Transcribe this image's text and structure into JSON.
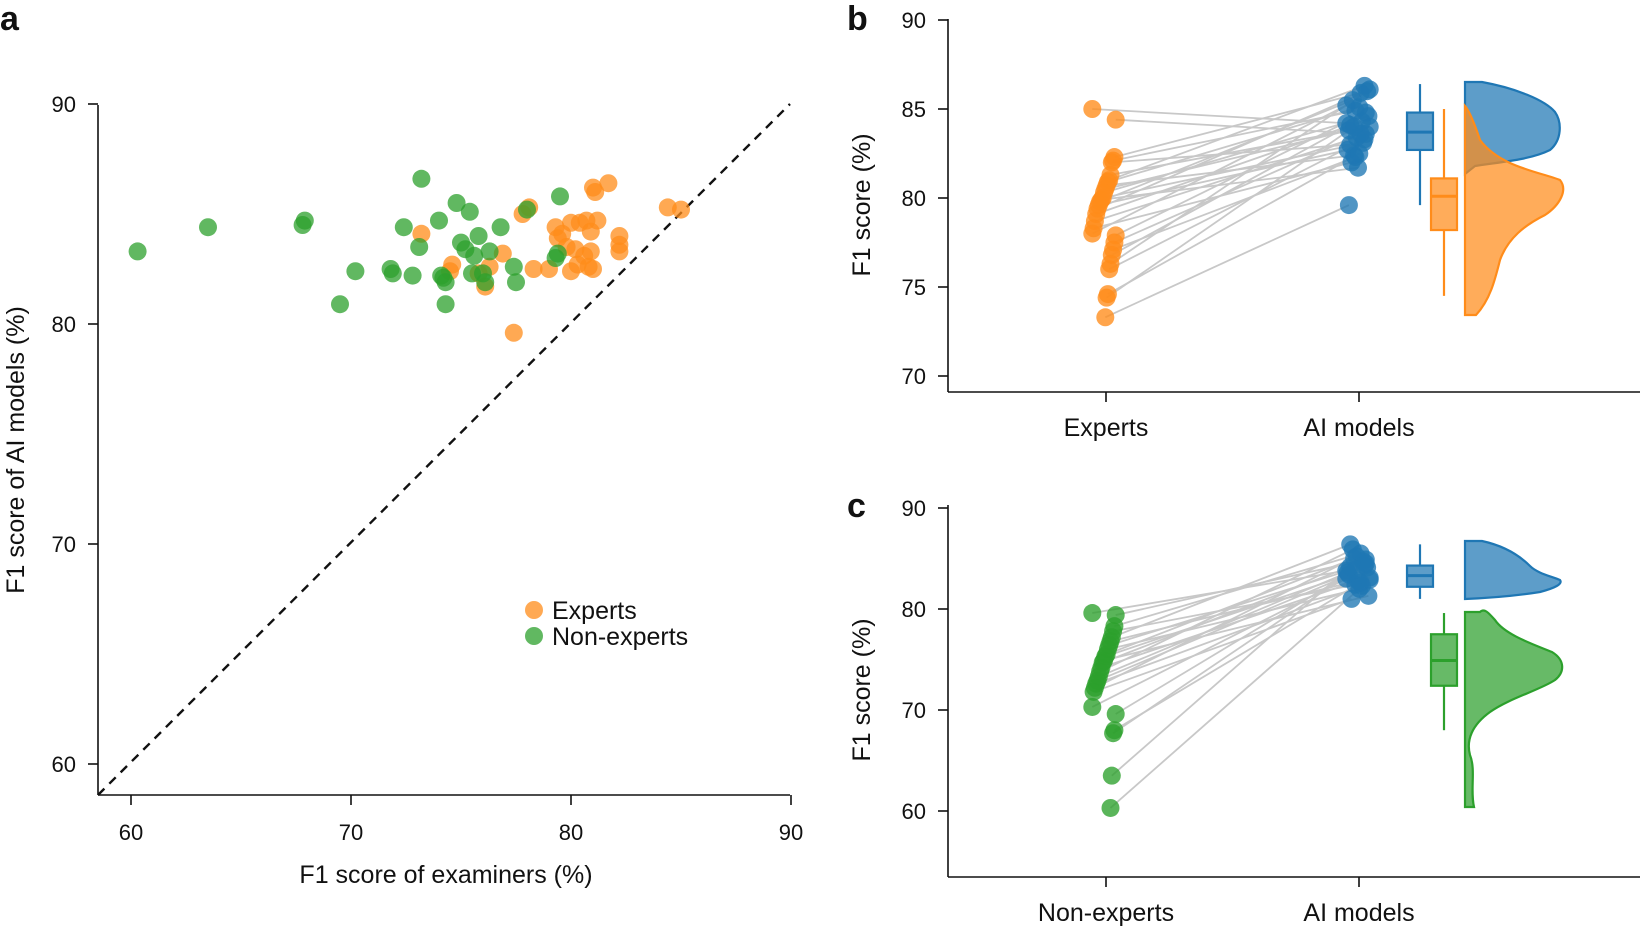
{
  "colors": {
    "experts": "#ff8c1a",
    "non_experts": "#2ca02c",
    "ai_models": "#1f77b4",
    "paired_line": "#c8c8c8",
    "axis": "#111111"
  },
  "chart_data": [
    {
      "panel": "a",
      "type": "scatter",
      "xlabel": "F1 score of examiners (%)",
      "ylabel": "F1 score of AI models (%)",
      "xlim": [
        58.5,
        90
      ],
      "ylim": [
        58.5,
        90
      ],
      "xticks": [
        60,
        70,
        80,
        90
      ],
      "yticks": [
        60,
        70,
        80,
        90
      ],
      "reference_line": "y = x (dashed)",
      "legend_position": "lower-right",
      "series": [
        {
          "name": "Experts",
          "color_key": "experts",
          "points": [
            [
              73.2,
              84.1
            ],
            [
              74.5,
              82.4
            ],
            [
              74.6,
              82.7
            ],
            [
              75.8,
              82.3
            ],
            [
              76.1,
              81.7
            ],
            [
              76.3,
              82.6
            ],
            [
              76.9,
              83.2
            ],
            [
              77.4,
              79.6
            ],
            [
              77.8,
              85.0
            ],
            [
              78.1,
              85.3
            ],
            [
              78.3,
              82.5
            ],
            [
              79.0,
              82.5
            ],
            [
              79.3,
              84.4
            ],
            [
              79.4,
              83.9
            ],
            [
              79.6,
              84.1
            ],
            [
              79.8,
              83.5
            ],
            [
              80.0,
              84.6
            ],
            [
              80.0,
              82.4
            ],
            [
              80.2,
              83.4
            ],
            [
              80.3,
              82.7
            ],
            [
              80.4,
              84.6
            ],
            [
              80.6,
              83.1
            ],
            [
              80.7,
              84.7
            ],
            [
              80.8,
              82.6
            ],
            [
              80.9,
              84.2
            ],
            [
              80.9,
              83.3
            ],
            [
              81.0,
              82.5
            ],
            [
              81.0,
              86.2
            ],
            [
              81.1,
              86.0
            ],
            [
              81.2,
              84.7
            ],
            [
              81.7,
              86.4
            ],
            [
              82.2,
              84.0
            ],
            [
              82.2,
              83.6
            ],
            [
              82.2,
              83.3
            ],
            [
              84.4,
              85.3
            ],
            [
              85.0,
              85.2
            ]
          ]
        },
        {
          "name": "Non-experts",
          "color_key": "non_experts",
          "points": [
            [
              60.3,
              83.3
            ],
            [
              63.5,
              84.4
            ],
            [
              67.8,
              84.5
            ],
            [
              67.9,
              84.7
            ],
            [
              69.5,
              80.9
            ],
            [
              70.2,
              82.4
            ],
            [
              71.8,
              82.5
            ],
            [
              71.9,
              82.3
            ],
            [
              72.4,
              84.4
            ],
            [
              72.8,
              82.2
            ],
            [
              73.1,
              83.5
            ],
            [
              73.2,
              86.6
            ],
            [
              74.0,
              84.7
            ],
            [
              74.1,
              82.2
            ],
            [
              74.2,
              82.1
            ],
            [
              74.3,
              80.9
            ],
            [
              74.3,
              81.9
            ],
            [
              74.8,
              85.5
            ],
            [
              75.0,
              83.7
            ],
            [
              75.2,
              83.4
            ],
            [
              75.4,
              85.1
            ],
            [
              75.5,
              82.3
            ],
            [
              75.6,
              83.1
            ],
            [
              75.8,
              84.0
            ],
            [
              76.0,
              82.3
            ],
            [
              76.1,
              81.9
            ],
            [
              76.3,
              83.3
            ],
            [
              76.8,
              84.4
            ],
            [
              77.4,
              82.6
            ],
            [
              77.5,
              81.9
            ],
            [
              78.0,
              85.2
            ],
            [
              79.3,
              83.0
            ],
            [
              79.4,
              83.2
            ],
            [
              79.5,
              85.8
            ]
          ]
        }
      ]
    },
    {
      "panel": "b",
      "type": "scatter",
      "subtype": "paired raincloud",
      "ylabel": "F1 score (%)",
      "ylim": [
        69,
        90
      ],
      "yticks": [
        70,
        75,
        80,
        85,
        90
      ],
      "categories": [
        "Experts",
        "AI models"
      ],
      "pairs": [
        [
          85.0,
          84.2
        ],
        [
          84.4,
          83.6
        ],
        [
          82.3,
          85.9
        ],
        [
          82.1,
          84.9
        ],
        [
          82.0,
          83.0
        ],
        [
          81.3,
          84.0
        ],
        [
          81.0,
          86.3
        ],
        [
          80.9,
          85.1
        ],
        [
          80.7,
          82.4
        ],
        [
          80.5,
          83.8
        ],
        [
          80.3,
          84.6
        ],
        [
          80.0,
          83.1
        ],
        [
          79.9,
          81.7
        ],
        [
          79.8,
          85.5
        ],
        [
          79.6,
          82.7
        ],
        [
          79.4,
          86.0
        ],
        [
          79.1,
          84.3
        ],
        [
          78.7,
          83.4
        ],
        [
          78.3,
          82.0
        ],
        [
          78.0,
          85.2
        ],
        [
          77.9,
          84.8
        ],
        [
          77.5,
          83.6
        ],
        [
          77.1,
          82.3
        ],
        [
          76.8,
          84.1
        ],
        [
          76.3,
          86.1
        ],
        [
          76.0,
          83.3
        ],
        [
          74.6,
          82.5
        ],
        [
          74.4,
          84.0
        ],
        [
          73.3,
          79.6
        ]
      ],
      "boxplots": [
        {
          "name": "AI models",
          "color_key": "ai_models",
          "min": 79.6,
          "q1": 82.7,
          "median": 83.7,
          "q3": 84.8,
          "max": 86.4
        },
        {
          "name": "Experts",
          "color_key": "experts",
          "min": 74.5,
          "q1": 78.2,
          "median": 80.1,
          "q3": 81.1,
          "max": 85.0
        }
      ]
    },
    {
      "panel": "c",
      "type": "scatter",
      "subtype": "paired raincloud",
      "ylabel": "F1 score (%)",
      "ylim": [
        53.5,
        90
      ],
      "yticks": [
        60,
        70,
        80,
        90
      ],
      "categories": [
        "Non-experts",
        "AI models"
      ],
      "pairs": [
        [
          79.6,
          83.8
        ],
        [
          79.4,
          84.9
        ],
        [
          78.3,
          85.5
        ],
        [
          77.8,
          82.4
        ],
        [
          77.2,
          86.4
        ],
        [
          76.8,
          83.1
        ],
        [
          76.4,
          84.3
        ],
        [
          76.0,
          82.0
        ],
        [
          75.5,
          85.0
        ],
        [
          75.3,
          83.4
        ],
        [
          74.9,
          81.3
        ],
        [
          74.7,
          84.7
        ],
        [
          74.2,
          82.8
        ],
        [
          73.8,
          85.9
        ],
        [
          73.3,
          83.6
        ],
        [
          72.9,
          84.1
        ],
        [
          72.6,
          82.3
        ],
        [
          72.2,
          85.2
        ],
        [
          71.8,
          81.0
        ],
        [
          70.3,
          83.0
        ],
        [
          69.6,
          84.5
        ],
        [
          68.0,
          82.6
        ],
        [
          67.7,
          83.9
        ],
        [
          63.5,
          84.2
        ],
        [
          60.3,
          82.9
        ]
      ],
      "boxplots": [
        {
          "name": "AI models",
          "color_key": "ai_models",
          "min": 81.0,
          "q1": 82.2,
          "median": 83.3,
          "q3": 84.3,
          "max": 86.4
        },
        {
          "name": "Non-experts",
          "color_key": "non_experts",
          "min": 68.0,
          "q1": 72.4,
          "median": 74.9,
          "q3": 77.5,
          "max": 79.6
        }
      ]
    }
  ]
}
